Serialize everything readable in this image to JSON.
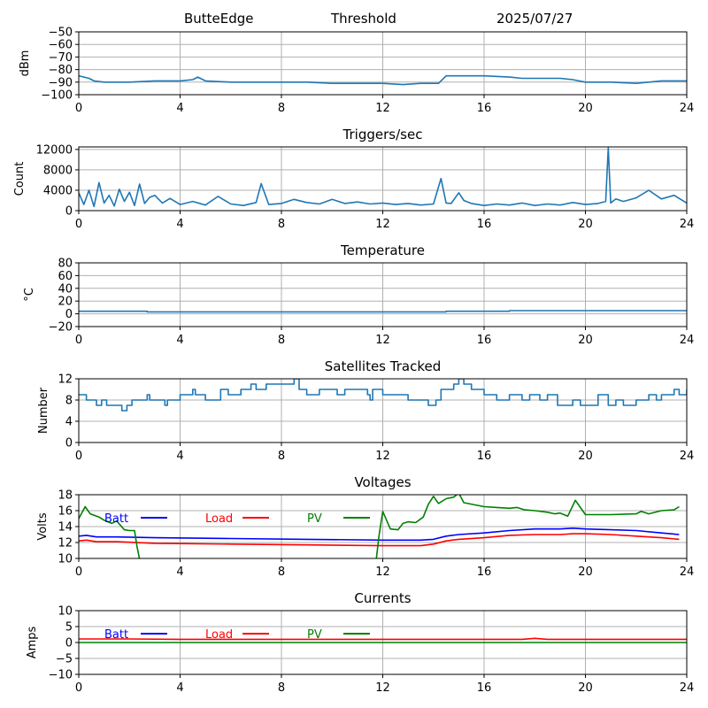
{
  "header": {
    "station": "ButteEdge",
    "mode": "Threshold",
    "date": "2025/07/27"
  },
  "colors": {
    "default": "#1f77b4",
    "batt": "#0000ff",
    "load": "#ff0000",
    "pv": "#008000",
    "grid": "#b0b0b0"
  },
  "chart_data": [
    {
      "type": "line",
      "id": "dbm",
      "title": "",
      "ylabel": "dBm",
      "xlim": [
        0,
        24
      ],
      "ylim": [
        -100,
        -50
      ],
      "xticks": [
        0,
        4,
        8,
        12,
        16,
        20,
        24
      ],
      "yticks": [
        -100,
        -90,
        -80,
        -70,
        -60,
        -50
      ],
      "grid": true,
      "series": [
        {
          "color": "default",
          "x": [
            0,
            0.4,
            0.6,
            1,
            2,
            3,
            4,
            4.5,
            4.7,
            5,
            6,
            7,
            8,
            9,
            10,
            11,
            12,
            12.8,
            13.5,
            14.2,
            14.5,
            15,
            16,
            17,
            17.5,
            19,
            19.5,
            20,
            21,
            22,
            22.5,
            23,
            23.5,
            24
          ],
          "y": [
            -85,
            -87,
            -89,
            -90,
            -90,
            -89,
            -89,
            -88,
            -86,
            -89,
            -90,
            -90,
            -90,
            -90,
            -91,
            -91,
            -91,
            -92,
            -91,
            -91,
            -85,
            -85,
            -85,
            -86,
            -87,
            -87,
            -88,
            -90,
            -90,
            -91,
            -90,
            -89,
            -89,
            -89
          ]
        }
      ]
    },
    {
      "type": "line",
      "id": "triggers",
      "title": "Triggers/sec",
      "ylabel": "Count",
      "xlim": [
        0,
        24
      ],
      "ylim": [
        0,
        12500
      ],
      "xticks": [
        0,
        4,
        8,
        12,
        16,
        20,
        24
      ],
      "yticks": [
        0,
        4000,
        8000,
        12000
      ],
      "grid": true,
      "series": [
        {
          "color": "default",
          "x": [
            0,
            0.2,
            0.4,
            0.6,
            0.8,
            1,
            1.2,
            1.4,
            1.6,
            1.8,
            2,
            2.2,
            2.4,
            2.6,
            2.8,
            3,
            3.3,
            3.6,
            4,
            4.5,
            5,
            5.5,
            6,
            6.5,
            7,
            7.2,
            7.5,
            8,
            8.5,
            9,
            9.5,
            10,
            10.5,
            11,
            11.5,
            12,
            12.5,
            13,
            13.5,
            14,
            14.3,
            14.5,
            14.7,
            15,
            15.2,
            15.5,
            16,
            16.5,
            17,
            17.5,
            18,
            18.5,
            19,
            19.5,
            20,
            20.5,
            20.8,
            20.9,
            21,
            21.2,
            21.5,
            22,
            22.5,
            23,
            23.5,
            24
          ],
          "y": [
            3500,
            1200,
            4000,
            800,
            5500,
            1500,
            3000,
            900,
            4200,
            1800,
            3600,
            1000,
            5200,
            1400,
            2600,
            3000,
            1500,
            2400,
            1200,
            1800,
            1100,
            2800,
            1300,
            1000,
            1600,
            5300,
            1200,
            1400,
            2200,
            1600,
            1300,
            2200,
            1400,
            1700,
            1300,
            1500,
            1200,
            1400,
            1100,
            1300,
            6300,
            1500,
            1400,
            3500,
            2000,
            1400,
            1000,
            1300,
            1100,
            1500,
            1000,
            1300,
            1100,
            1600,
            1200,
            1400,
            1800,
            12300,
            1500,
            2300,
            1800,
            2500,
            4000,
            2300,
            3000,
            1500
          ]
        }
      ]
    },
    {
      "type": "line",
      "id": "temp",
      "title": "Temperature",
      "ylabel": "°C",
      "xlim": [
        0,
        24
      ],
      "ylim": [
        -20,
        80
      ],
      "xticks": [
        0,
        4,
        8,
        12,
        16,
        20,
        24
      ],
      "yticks": [
        -20,
        0,
        20,
        40,
        60,
        80
      ],
      "grid": true,
      "series": [
        {
          "color": "default",
          "x": [
            0,
            2.7,
            2.7,
            14.5,
            14.5,
            17,
            17,
            24
          ],
          "y": [
            4,
            4,
            3,
            3,
            4,
            4,
            5,
            5
          ]
        }
      ]
    },
    {
      "type": "line",
      "id": "sats",
      "title": "Satellites Tracked",
      "ylabel": "Number",
      "xlim": [
        0,
        24
      ],
      "ylim": [
        0,
        12
      ],
      "xticks": [
        0,
        4,
        8,
        12,
        16,
        20,
        24
      ],
      "yticks": [
        0,
        4,
        8,
        12
      ],
      "grid": true,
      "step": true,
      "series": [
        {
          "color": "default",
          "x": [
            0,
            0.3,
            0.7,
            0.9,
            1.1,
            1.3,
            1.7,
            1.9,
            2.1,
            2.7,
            2.8,
            3.4,
            3.5,
            4,
            4.5,
            4.6,
            5,
            5.6,
            5.9,
            6.4,
            6.8,
            7,
            7.4,
            8.5,
            8.7,
            9,
            9.5,
            10.2,
            10.5,
            11.4,
            11.5,
            11.6,
            12,
            13,
            13.8,
            14.1,
            14.3,
            14.8,
            15,
            15.2,
            15.5,
            16,
            16.5,
            17,
            17.5,
            17.8,
            18.2,
            18.5,
            18.9,
            19.5,
            19.8,
            20.5,
            20.9,
            21.2,
            21.5,
            22,
            22.5,
            22.8,
            23,
            23.5,
            23.7,
            24
          ],
          "y": [
            9,
            8,
            7,
            8,
            7,
            7,
            6,
            7,
            8,
            9,
            8,
            7,
            8,
            9,
            10,
            9,
            8,
            10,
            9,
            10,
            11,
            10,
            11,
            12,
            10,
            9,
            10,
            9,
            10,
            9,
            8,
            10,
            9,
            8,
            7,
            8,
            10,
            11,
            12,
            11,
            10,
            9,
            8,
            9,
            8,
            9,
            8,
            9,
            7,
            8,
            7,
            9,
            7,
            8,
            7,
            8,
            9,
            8,
            9,
            10,
            9,
            10
          ]
        }
      ]
    },
    {
      "type": "line",
      "id": "volts",
      "title": "Voltages",
      "ylabel": "Volts",
      "xlim": [
        0,
        24
      ],
      "ylim": [
        10,
        18
      ],
      "xticks": [
        0,
        4,
        8,
        12,
        16,
        20,
        24
      ],
      "yticks": [
        10,
        12,
        14,
        16,
        18
      ],
      "grid": true,
      "legend": [
        {
          "label": "Batt",
          "color": "batt"
        },
        {
          "label": "Load",
          "color": "load"
        },
        {
          "label": "PV",
          "color": "pv"
        }
      ],
      "series": [
        {
          "name": "Batt",
          "color": "batt",
          "x": [
            0,
            0.3,
            0.7,
            1.5,
            3,
            6,
            9,
            12,
            13.5,
            14,
            14.5,
            15,
            16,
            17,
            18,
            19,
            19.5,
            20,
            21,
            22,
            23,
            23.7
          ],
          "y": [
            12.8,
            12.9,
            12.7,
            12.7,
            12.6,
            12.5,
            12.4,
            12.3,
            12.3,
            12.4,
            12.8,
            13,
            13.2,
            13.5,
            13.7,
            13.7,
            13.8,
            13.7,
            13.6,
            13.5,
            13.2,
            13
          ]
        },
        {
          "name": "Load",
          "color": "load",
          "x": [
            0,
            0.3,
            0.7,
            1.5,
            3,
            6,
            9,
            12,
            13.5,
            14,
            14.5,
            15,
            16,
            17,
            18,
            19,
            19.5,
            20,
            21,
            22,
            23,
            23.7
          ],
          "y": [
            12.2,
            12.3,
            12.1,
            12.1,
            11.9,
            11.8,
            11.7,
            11.6,
            11.6,
            11.8,
            12.2,
            12.4,
            12.6,
            12.9,
            13,
            13,
            13.1,
            13.1,
            13,
            12.8,
            12.6,
            12.4
          ]
        },
        {
          "name": "PV",
          "color": "pv",
          "x": [
            0,
            0.25,
            0.45,
            0.8,
            1,
            1.3,
            1.5,
            1.8,
            2,
            2.2,
            2.3,
            2.4,
            2.6,
            11.7,
            11.75,
            11.85,
            12,
            12.3,
            12.6,
            12.8,
            13,
            13.3,
            13.6,
            13.8,
            14,
            14.2,
            14.5,
            14.8,
            15,
            15.2,
            16,
            16.5,
            17,
            17.3,
            17.6,
            18,
            18.5,
            18.8,
            19,
            19.3,
            19.6,
            20,
            21,
            22,
            22.2,
            22.5,
            23,
            23.5,
            23.7
          ],
          "y": [
            15,
            16.5,
            15.6,
            15.2,
            14.8,
            14.4,
            14.7,
            13.6,
            13.5,
            13.5,
            11.5,
            9.9,
            9.9,
            9.9,
            10,
            12.8,
            15.9,
            13.7,
            13.6,
            14.4,
            14.6,
            14.5,
            15.2,
            16.8,
            17.8,
            16.9,
            17.5,
            17.7,
            18.2,
            17,
            16.5,
            16.4,
            16.3,
            16.4,
            16.1,
            16,
            15.8,
            15.6,
            15.7,
            15.3,
            17.3,
            15.5,
            15.5,
            15.6,
            15.9,
            15.6,
            16,
            16.1,
            16.5
          ]
        }
      ]
    },
    {
      "type": "line",
      "id": "amps",
      "title": "Currents",
      "ylabel": "Amps",
      "xlim": [
        0,
        24
      ],
      "ylim": [
        -10,
        10
      ],
      "xticks": [
        0,
        4,
        8,
        12,
        16,
        20,
        24
      ],
      "yticks": [
        -10,
        -5,
        0,
        5,
        10
      ],
      "grid": true,
      "legend": [
        {
          "label": "Batt",
          "color": "batt"
        },
        {
          "label": "Load",
          "color": "load"
        },
        {
          "label": "PV",
          "color": "pv"
        }
      ],
      "series": [
        {
          "name": "Load",
          "color": "load",
          "x": [
            0,
            2,
            4,
            8,
            12,
            16,
            17.5,
            18,
            18.5,
            20,
            24
          ],
          "y": [
            1.1,
            1.1,
            1,
            1,
            1,
            1,
            1,
            1.3,
            1,
            1,
            1
          ]
        },
        {
          "name": "PV",
          "color": "pv",
          "x": [
            0,
            24
          ],
          "y": [
            0,
            0
          ]
        }
      ]
    }
  ]
}
